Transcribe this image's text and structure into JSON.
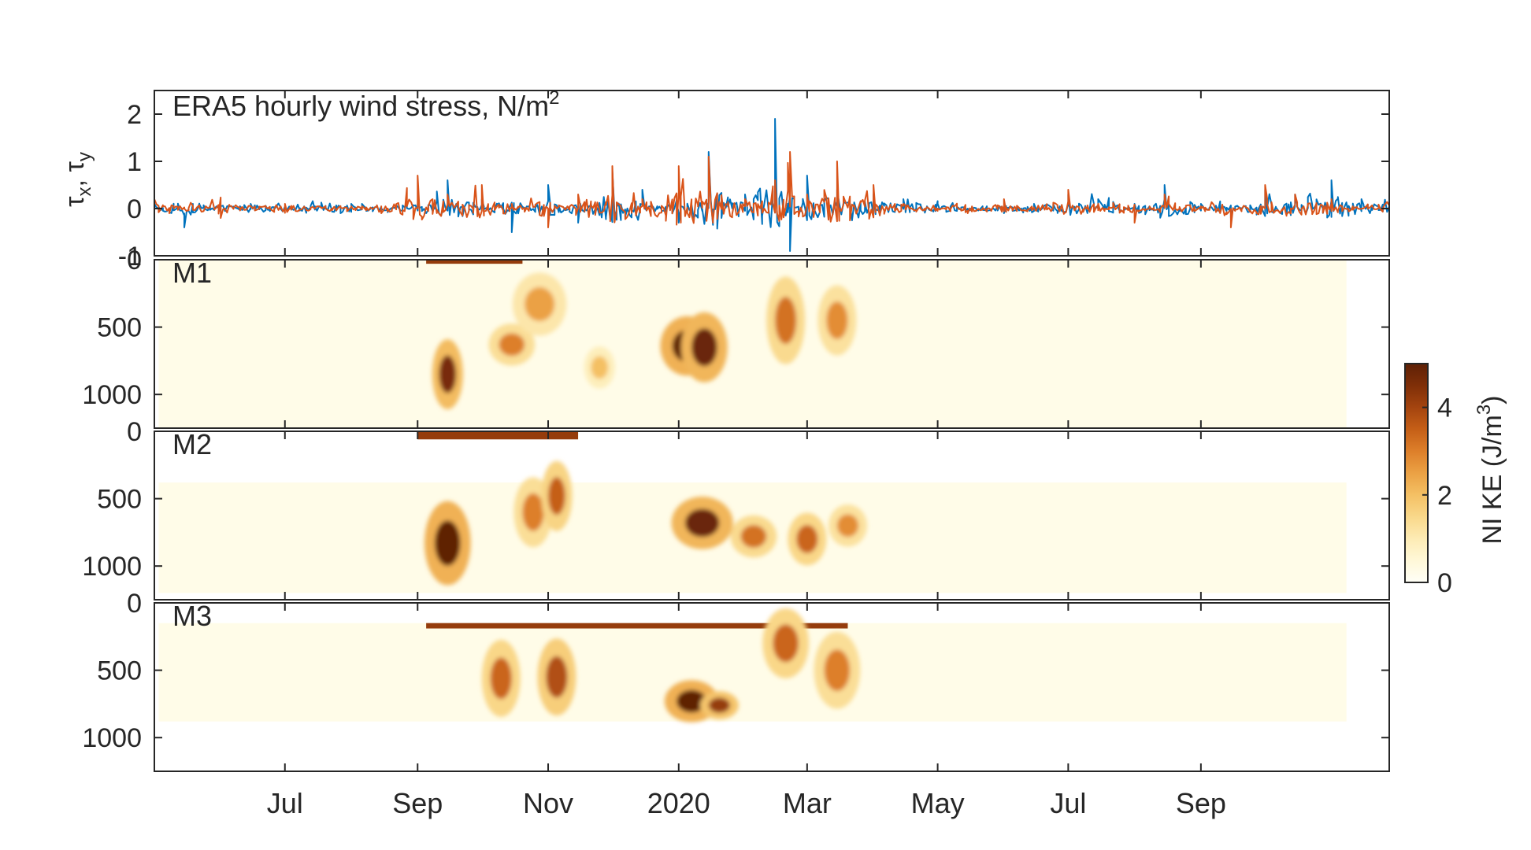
{
  "chart_data": [
    {
      "type": "line",
      "panel": "wind-stress",
      "title": "ERA5 hourly wind stress, N/m",
      "title_superscript": "2",
      "ylabel_parts": [
        "τ",
        "x",
        ", τ",
        "y"
      ],
      "ylim": [
        -1,
        2.5
      ],
      "yticks": [
        -1,
        0,
        1,
        2
      ],
      "ytick_labels": [
        "-1",
        "0",
        "1",
        "2"
      ],
      "x_range": [
        "2019-05-01",
        "2020-11-28"
      ],
      "series": [
        {
          "color": "#0072BD",
          "x": [
            "2019-05-01",
            "2019-05-15",
            "2019-06-01",
            "2019-06-15",
            "2019-07-01",
            "2019-07-15",
            "2019-08-01",
            "2019-08-15",
            "2019-09-01",
            "2019-09-15",
            "2019-10-01",
            "2019-10-15",
            "2019-11-01",
            "2019-11-15",
            "2019-12-01",
            "2019-12-15",
            "2020-01-01",
            "2020-01-15",
            "2020-02-01",
            "2020-02-15",
            "2020-02-22",
            "2020-03-01",
            "2020-03-15",
            "2020-04-01",
            "2020-04-15",
            "2020-05-01",
            "2020-05-15",
            "2020-06-01",
            "2020-06-15",
            "2020-07-01",
            "2020-07-15",
            "2020-08-01",
            "2020-08-15",
            "2020-09-01",
            "2020-09-15",
            "2020-10-01",
            "2020-10-15",
            "2020-11-01",
            "2020-11-15",
            "2020-11-28"
          ],
          "y": [
            0.1,
            -0.4,
            0.05,
            0.1,
            0.0,
            0.05,
            0.1,
            0.0,
            0.1,
            0.6,
            0.2,
            -0.5,
            0.5,
            -0.3,
            0.8,
            0.4,
            -0.3,
            1.2,
            0.3,
            1.9,
            -0.9,
            0.7,
            0.4,
            0.3,
            0.2,
            0.1,
            0.0,
            -0.1,
            0.1,
            0.3,
            0.2,
            0.1,
            0.5,
            0.1,
            -0.2,
            0.4,
            0.3,
            0.6,
            0.2,
            0.1
          ]
        },
        {
          "color": "#D95319",
          "x": [
            "2019-05-01",
            "2019-05-15",
            "2019-06-01",
            "2019-06-15",
            "2019-07-01",
            "2019-07-15",
            "2019-08-01",
            "2019-08-15",
            "2019-09-01",
            "2019-09-15",
            "2019-10-01",
            "2019-10-15",
            "2019-11-01",
            "2019-11-15",
            "2019-12-01",
            "2019-12-15",
            "2020-01-01",
            "2020-01-15",
            "2020-02-01",
            "2020-02-15",
            "2020-02-22",
            "2020-03-01",
            "2020-03-15",
            "2020-04-01",
            "2020-04-15",
            "2020-05-01",
            "2020-05-15",
            "2020-06-01",
            "2020-06-15",
            "2020-07-01",
            "2020-07-15",
            "2020-08-01",
            "2020-08-15",
            "2020-09-01",
            "2020-09-15",
            "2020-10-01",
            "2020-10-15",
            "2020-11-01",
            "2020-11-15",
            "2020-11-28"
          ],
          "y": [
            0.2,
            0.0,
            -0.2,
            0.05,
            0.1,
            0.0,
            0.05,
            -0.1,
            0.7,
            0.3,
            0.5,
            0.1,
            -0.4,
            0.3,
            0.9,
            0.2,
            0.9,
            1.1,
            0.2,
            0.6,
            1.2,
            0.3,
            1.0,
            0.5,
            0.1,
            0.0,
            -0.1,
            0.2,
            0.0,
            0.4,
            0.1,
            -0.3,
            0.3,
            0.0,
            -0.4,
            0.5,
            0.3,
            0.2,
            0.0,
            -0.2
          ]
        }
      ]
    },
    {
      "type": "heatmap",
      "panels": [
        {
          "label": "M1",
          "ylim": [
            1250,
            0
          ],
          "yticks": [
            0,
            500,
            1000
          ],
          "ytick_labels": [
            "0",
            "500",
            "1000"
          ],
          "surface_band": [
            "2019-09-05",
            "2019-10-20",
            0,
            30
          ],
          "coverage": {
            "x": [
              "2019-05-03",
              "2020-11-08"
            ],
            "depth_top": 0,
            "depth_bottom": 1250
          },
          "hotspots": [
            {
              "x": "2019-09-15",
              "depth": 850,
              "value": 4.6,
              "dx_days": 4,
              "dz": 200
            },
            {
              "x": "2019-10-15",
              "depth": 630,
              "value": 3.0,
              "dx_days": 6,
              "dz": 120
            },
            {
              "x": "2019-10-28",
              "depth": 330,
              "value": 2.5,
              "dx_days": 7,
              "dz": 180
            },
            {
              "x": "2020-01-05",
              "depth": 640,
              "value": 5.0,
              "dx_days": 7,
              "dz": 170
            },
            {
              "x": "2020-01-13",
              "depth": 650,
              "value": 4.8,
              "dx_days": 6,
              "dz": 200
            },
            {
              "x": "2020-02-20",
              "depth": 450,
              "value": 3.2,
              "dx_days": 5,
              "dz": 250
            },
            {
              "x": "2020-03-15",
              "depth": 450,
              "value": 2.8,
              "dx_days": 5,
              "dz": 200
            },
            {
              "x": "2019-11-25",
              "depth": 800,
              "value": 2.0,
              "dx_days": 4,
              "dz": 120
            }
          ]
        },
        {
          "label": "M2",
          "ylim": [
            1250,
            0
          ],
          "yticks": [
            0,
            500,
            1000
          ],
          "ytick_labels": [
            "0",
            "500",
            "1000"
          ],
          "surface_band": [
            "2019-09-01",
            "2019-11-15",
            0,
            60
          ],
          "coverage": {
            "x": [
              "2019-05-03",
              "2020-11-08"
            ],
            "depth_top": 380,
            "depth_bottom": 1200
          },
          "hotspots": [
            {
              "x": "2019-09-15",
              "depth": 830,
              "value": 5.0,
              "dx_days": 6,
              "dz": 240
            },
            {
              "x": "2019-10-25",
              "depth": 600,
              "value": 3.0,
              "dx_days": 5,
              "dz": 200
            },
            {
              "x": "2019-11-05",
              "depth": 480,
              "value": 3.5,
              "dx_days": 4,
              "dz": 200
            },
            {
              "x": "2020-01-12",
              "depth": 680,
              "value": 4.8,
              "dx_days": 8,
              "dz": 150
            },
            {
              "x": "2020-02-05",
              "depth": 780,
              "value": 3.2,
              "dx_days": 6,
              "dz": 120
            },
            {
              "x": "2020-03-01",
              "depth": 800,
              "value": 3.4,
              "dx_days": 5,
              "dz": 150
            },
            {
              "x": "2020-03-20",
              "depth": 700,
              "value": 2.8,
              "dx_days": 5,
              "dz": 120
            }
          ]
        },
        {
          "label": "M3",
          "ylim": [
            1250,
            0
          ],
          "yticks": [
            0,
            500,
            1000
          ],
          "ytick_labels": [
            "0",
            "500",
            "1000"
          ],
          "surface_band": [
            "2019-09-05",
            "2020-03-20",
            150,
            190
          ],
          "coverage": {
            "x": [
              "2019-05-03",
              "2020-11-08"
            ],
            "depth_top": 150,
            "depth_bottom": 880
          },
          "hotspots": [
            {
              "x": "2019-10-10",
              "depth": 560,
              "value": 3.4,
              "dx_days": 5,
              "dz": 220
            },
            {
              "x": "2019-11-05",
              "depth": 550,
              "value": 3.8,
              "dx_days": 5,
              "dz": 220
            },
            {
              "x": "2020-01-07",
              "depth": 730,
              "value": 5.0,
              "dx_days": 7,
              "dz": 120
            },
            {
              "x": "2020-01-20",
              "depth": 760,
              "value": 4.2,
              "dx_days": 5,
              "dz": 80
            },
            {
              "x": "2020-02-20",
              "depth": 300,
              "value": 3.4,
              "dx_days": 6,
              "dz": 200
            },
            {
              "x": "2020-03-15",
              "depth": 500,
              "value": 3.0,
              "dx_days": 6,
              "dz": 220
            }
          ]
        }
      ],
      "colorbar": {
        "label": "NI KE (J/m",
        "label_superscript": "3",
        "label_suffix": ")",
        "clim": [
          0,
          5
        ],
        "ticks": [
          0,
          2,
          4
        ],
        "tick_labels": [
          "0",
          "2",
          "4"
        ],
        "colors": [
          "#FFFFF7",
          "#FFF8D8",
          "#FDEBB4",
          "#F9D88A",
          "#F4C064",
          "#EBA144",
          "#DD7F2A",
          "#C55F17",
          "#A4440F",
          "#7F2F08",
          "#5E2006"
        ]
      }
    }
  ],
  "x_axis": {
    "ticks": [
      "2019-07-01",
      "2019-09-01",
      "2019-11-01",
      "2020-01-01",
      "2020-03-01",
      "2020-05-01",
      "2020-07-01",
      "2020-09-01"
    ],
    "tick_labels": [
      "Jul",
      "Sep",
      "Nov",
      "2020",
      "Mar",
      "May",
      "Jul",
      "Sep"
    ]
  }
}
